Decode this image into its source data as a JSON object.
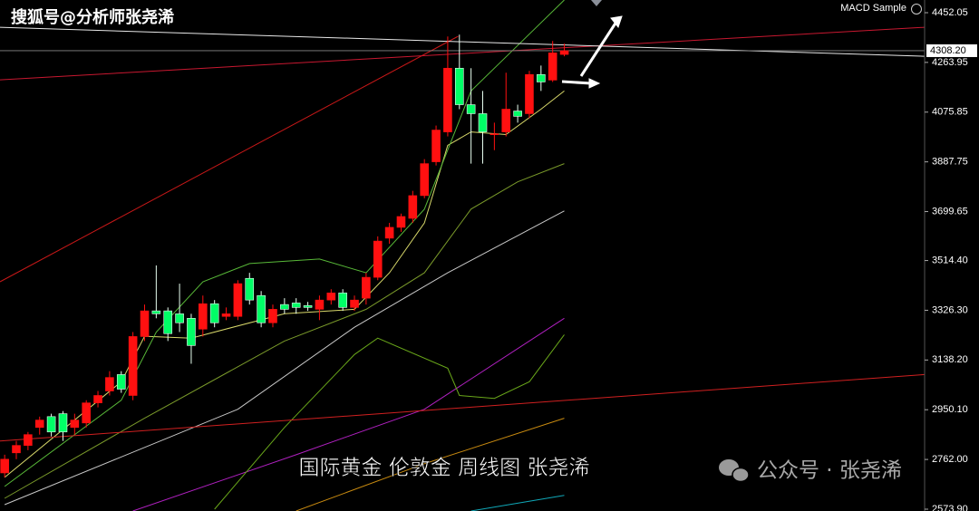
{
  "chart_data": {
    "type": "candlestick",
    "title": "国际黄金 伦敦金 周线图 张尧浠",
    "watermark": "搜狐号@分析师张尧浠",
    "indicator": "MACD Sample",
    "brand": "公众号 · 张尧浠",
    "up_color": "#ff1010",
    "down_color": "#00ff66",
    "xlim": [
      -0.4,
      78.9
    ],
    "ylim": [
      2567,
      4500
    ],
    "yticks": [
      4452.05,
      4263.95,
      4075.85,
      3887.75,
      3699.65,
      {
        "value": 3514.4,
        "label": "3514.40"
      },
      {
        "value": 3326.3,
        "label": "3326.30"
      },
      {
        "value": 3138.2,
        "label": "3138.20"
      },
      {
        "value": 2950.1,
        "label": "2950.10"
      },
      {
        "value": 2762,
        "label": "2762.00"
      },
      {
        "value": 2573.9,
        "label": "2573.90"
      }
    ],
    "last_price": {
      "value": 4308.2,
      "label": "4308.20"
    },
    "candles": {
      "open": [
        2711,
        2787,
        2815,
        2883,
        2924,
        2935,
        2883,
        2900,
        2976,
        3021,
        3083,
        3004,
        3227,
        3324,
        3324,
        3313,
        3296,
        3255,
        3351,
        3303,
        3303,
        3447,
        3382,
        3279,
        3348,
        3354,
        3344,
        3330,
        3365,
        3392,
        3337,
        3372,
        3451,
        3599,
        3640,
        3674,
        3760,
        3888,
        4001,
        4242,
        4104,
        4070,
        3991,
        4001,
        4080,
        4070,
        4218,
        4197,
        4294
      ],
      "high": [
        2780,
        2832,
        2866,
        2924,
        2935,
        2945,
        2935,
        2986,
        3021,
        3096,
        3096,
        3244,
        3348,
        3496,
        3337,
        3427,
        3313,
        3382,
        3365,
        3337,
        3440,
        3468,
        3399,
        3348,
        3372,
        3372,
        3358,
        3382,
        3406,
        3406,
        3382,
        3468,
        3606,
        3657,
        3692,
        3778,
        3898,
        4025,
        4362,
        4369,
        4242,
        4156,
        4036,
        4225,
        4104,
        4232,
        4252,
        4345,
        4335
      ],
      "low": [
        2694,
        2763,
        2797,
        2856,
        2849,
        2832,
        2856,
        2883,
        2959,
        3004,
        3014,
        2986,
        3210,
        3296,
        3210,
        3244,
        3124,
        3227,
        3262,
        3289,
        3289,
        3348,
        3262,
        3262,
        3313,
        3313,
        3324,
        3289,
        3348,
        3324,
        3324,
        3348,
        3440,
        3578,
        3623,
        3657,
        3750,
        3874,
        3984,
        4087,
        3881,
        3881,
        3932,
        3984,
        4036,
        4053,
        4156,
        4190,
        4287
      ],
      "close": [
        2763,
        2815,
        2856,
        2911,
        2866,
        2866,
        2911,
        2976,
        3004,
        3072,
        3028,
        3227,
        3324,
        3313,
        3238,
        3279,
        3193,
        3351,
        3279,
        3313,
        3427,
        3365,
        3279,
        3330,
        3330,
        3337,
        3337,
        3365,
        3392,
        3337,
        3365,
        3451,
        3588,
        3640,
        3681,
        3760,
        3881,
        4008,
        4242,
        4104,
        4070,
        4001,
        3994,
        4087,
        4060,
        4218,
        4190,
        4300,
        4308.2
      ]
    },
    "lines": [
      {
        "color": "#d8d86a",
        "x": [
          0,
          10,
          12,
          16,
          24,
          30,
          33,
          36,
          38,
          40,
          43,
          46,
          48
        ],
        "values": [
          2694,
          3056,
          3228,
          3221,
          3313,
          3330,
          3468,
          3657,
          3950,
          4001,
          3991,
          4087,
          4156
        ]
      },
      {
        "color": "#58b838",
        "x": [
          0,
          10,
          13,
          17,
          21,
          27,
          31,
          36,
          40,
          44,
          48
        ],
        "values": [
          2660,
          2986,
          3244,
          3434,
          3503,
          3520,
          3468,
          3709,
          4156,
          4328,
          4500
        ]
      },
      {
        "color": "#7a9a2a",
        "x": [
          0,
          12,
          24,
          31,
          36,
          40,
          44,
          48
        ],
        "values": [
          2615,
          2918,
          3210,
          3330,
          3468,
          3709,
          3812,
          3881
        ]
      },
      {
        "color": "#c8c8c8",
        "x": [
          0,
          20,
          30,
          38,
          48
        ],
        "values": [
          2591,
          2952,
          3262,
          3468,
          3702
        ]
      },
      {
        "color": "#b020c0",
        "x": [
          11,
          25,
          36,
          48
        ],
        "values": [
          2567,
          2780,
          2952,
          3296
        ]
      },
      {
        "color": "#6aa81a",
        "x": [
          18,
          24,
          30,
          32,
          38,
          39,
          42,
          45,
          48
        ],
        "values": [
          2574,
          2883,
          3159,
          3221,
          3107,
          3004,
          2993,
          3056,
          3234
        ]
      },
      {
        "color": "#c88a10",
        "x": [
          25,
          36,
          48
        ],
        "values": [
          2567,
          2746,
          2918
        ]
      },
      {
        "color": "#10a8b8",
        "x": [
          40,
          48
        ],
        "values": [
          2567,
          2626
        ]
      },
      {
        "color": "#c81818",
        "x": [
          -0.4,
          38.9
        ],
        "values": [
          3434,
          4363
        ]
      },
      {
        "color": "#c81830",
        "x": [
          -0.4,
          78.9
        ],
        "values": [
          4198,
          4397
        ]
      },
      {
        "color": "#d02020",
        "x": [
          -0.4,
          78.9
        ],
        "values": [
          2832,
          3083
        ]
      },
      {
        "color": "#e8e8e8",
        "x": [
          -0.4,
          78.9
        ],
        "values": [
          4397,
          4287
        ]
      }
    ]
  }
}
